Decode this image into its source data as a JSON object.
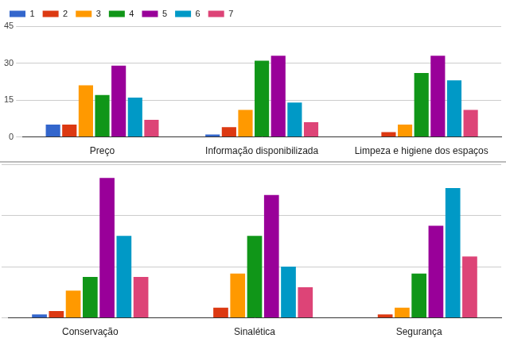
{
  "chart_data": [
    {
      "type": "bar",
      "categories": [
        "Preço",
        "Informação disponibilizada",
        "Limpeza e higiene dos espaços"
      ],
      "series": [
        {
          "name": "1",
          "color": "#3366cc",
          "values": [
            5,
            1,
            0
          ]
        },
        {
          "name": "2",
          "color": "#dc3912",
          "values": [
            5,
            4,
            2
          ]
        },
        {
          "name": "3",
          "color": "#ff9900",
          "values": [
            21,
            11,
            5
          ]
        },
        {
          "name": "4",
          "color": "#109618",
          "values": [
            17,
            31,
            26
          ]
        },
        {
          "name": "5",
          "color": "#990099",
          "values": [
            29,
            33,
            33
          ]
        },
        {
          "name": "6",
          "color": "#0099c6",
          "values": [
            16,
            14,
            23
          ]
        },
        {
          "name": "7",
          "color": "#dd4477",
          "values": [
            7,
            6,
            11
          ]
        }
      ],
      "ylim": [
        0,
        45
      ],
      "yticks": [
        0,
        15,
        30,
        45
      ],
      "grid": true,
      "legend": "top-left"
    },
    {
      "type": "bar",
      "categories": [
        "Conservação",
        "Sinalética",
        "Segurança"
      ],
      "series": [
        {
          "name": "1",
          "color": "#3366cc",
          "values": [
            1,
            0,
            0
          ]
        },
        {
          "name": "2",
          "color": "#dc3912",
          "values": [
            2,
            3,
            1
          ]
        },
        {
          "name": "3",
          "color": "#ff9900",
          "values": [
            8,
            13,
            3
          ]
        },
        {
          "name": "4",
          "color": "#109618",
          "values": [
            12,
            24,
            13
          ]
        },
        {
          "name": "5",
          "color": "#990099",
          "values": [
            41,
            36,
            27
          ]
        },
        {
          "name": "6",
          "color": "#0099c6",
          "values": [
            24,
            15,
            38
          ]
        },
        {
          "name": "7",
          "color": "#dd4477",
          "values": [
            12,
            9,
            18
          ]
        }
      ],
      "ylim": [
        0,
        45
      ],
      "yticks": [
        0,
        15,
        30,
        45
      ],
      "grid": true,
      "tick_labels": "x"
    }
  ]
}
